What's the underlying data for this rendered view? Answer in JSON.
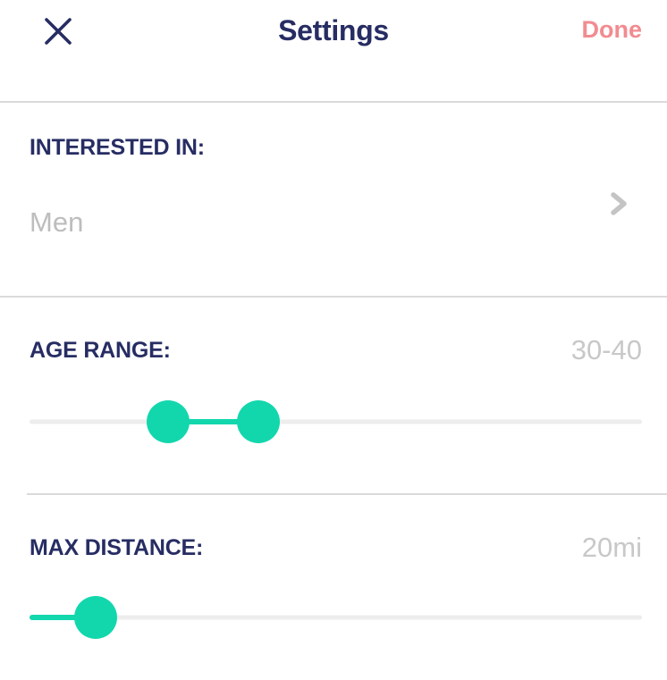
{
  "colors": {
    "navy": "#272d63",
    "salmon": "#f28b90",
    "teal": "#12d7ad",
    "value_gray": "#c8c8c8",
    "divider_gray": "#dadada",
    "track_gray": "#ededed"
  },
  "header": {
    "title": "Settings",
    "close_icon": "close-icon",
    "done_label": "Done"
  },
  "sections": {
    "interested_in": {
      "label": "INTERESTED IN:",
      "value": "Men",
      "chevron_icon": "chevron-right-icon"
    },
    "age_range": {
      "label": "AGE RANGE:",
      "value": "30-40",
      "slider": {
        "fill_percent": [
          22.6,
          37.4
        ],
        "handles_percent": [
          22.6,
          37.4
        ]
      }
    },
    "max_distance": {
      "label": "MAX DISTANCE:",
      "value": "20mi",
      "slider": {
        "fill_percent": [
          0,
          10.8
        ],
        "handles_percent": [
          10.8
        ]
      }
    }
  }
}
